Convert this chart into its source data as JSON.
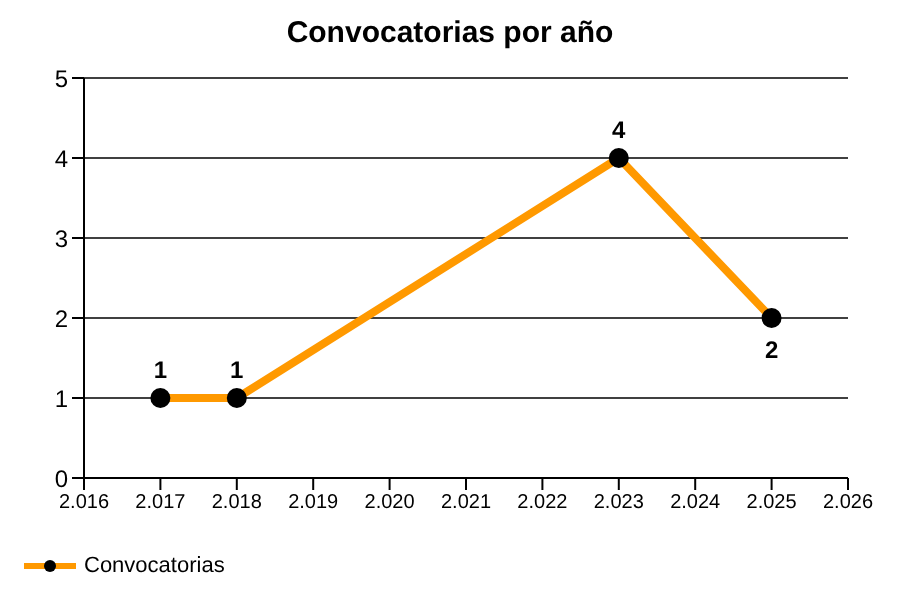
{
  "chart_data": {
    "type": "line",
    "title": "Convocatorias por año",
    "x": [
      2017,
      2018,
      2023,
      2025
    ],
    "series": [
      {
        "name": "Convocatorias",
        "color": "#ff9900",
        "values": [
          1,
          1,
          4,
          2
        ]
      }
    ],
    "xlim": [
      2016,
      2026
    ],
    "xticks": [
      {
        "value": 2016,
        "label": "2.016"
      },
      {
        "value": 2017,
        "label": "2.017"
      },
      {
        "value": 2018,
        "label": "2.018"
      },
      {
        "value": 2019,
        "label": "2.019"
      },
      {
        "value": 2020,
        "label": "2.020"
      },
      {
        "value": 2021,
        "label": "2.021"
      },
      {
        "value": 2022,
        "label": "2.022"
      },
      {
        "value": 2023,
        "label": "2.023"
      },
      {
        "value": 2024,
        "label": "2.024"
      },
      {
        "value": 2025,
        "label": "2.025"
      },
      {
        "value": 2026,
        "label": "2.026"
      }
    ],
    "ylim": [
      0,
      5
    ],
    "yticks": [
      0,
      1,
      2,
      3,
      4,
      5
    ],
    "grid": "y",
    "legend": "bottom left",
    "marker": "circle",
    "line_style": "solid",
    "data_labels": true
  }
}
